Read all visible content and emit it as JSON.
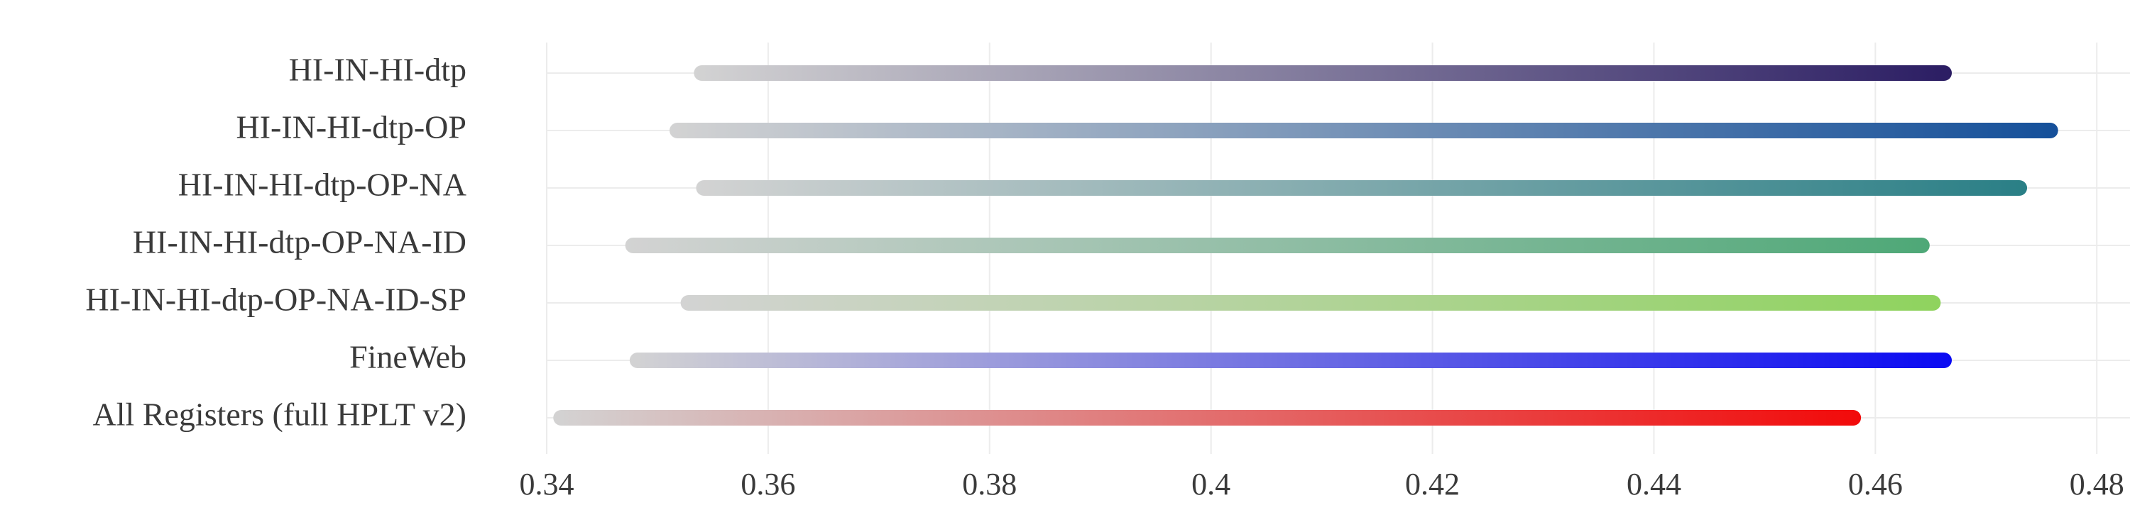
{
  "chart_data": {
    "type": "range_bar",
    "title": "",
    "xlabel": "",
    "ylabel": "",
    "xlim": [
      0.34,
      0.483
    ],
    "xticks": [
      0.34,
      0.36,
      0.38,
      0.4,
      0.42,
      0.44,
      0.46,
      0.48
    ],
    "xtick_labels": [
      "0.34",
      "0.36",
      "0.38",
      "0.4",
      "0.42",
      "0.44",
      "0.46",
      "0.48"
    ],
    "grid": true,
    "gradient_start_color": "#d3d3d3",
    "series": [
      {
        "category": "HI-IN-HI-dtp",
        "start": 0.354,
        "end": 0.4662,
        "color": "#2b1d63"
      },
      {
        "category": "HI-IN-HI-dtp-OP",
        "start": 0.3518,
        "end": 0.4758,
        "color": "#15509a"
      },
      {
        "category": "HI-IN-HI-dtp-OP-NA",
        "start": 0.3542,
        "end": 0.473,
        "color": "#2a7f86"
      },
      {
        "category": "HI-IN-HI-dtp-OP-NA-ID",
        "start": 0.3478,
        "end": 0.4642,
        "color": "#4ea877"
      },
      {
        "category": "HI-IN-HI-dtp-OP-NA-ID-SP",
        "start": 0.3528,
        "end": 0.4652,
        "color": "#8fd35e"
      },
      {
        "category": "FineWeb",
        "start": 0.3482,
        "end": 0.4662,
        "color": "#0a0af2"
      },
      {
        "category": "All Registers (full HPLT v2)",
        "start": 0.3413,
        "end": 0.458,
        "color": "#f20a0a"
      }
    ]
  }
}
